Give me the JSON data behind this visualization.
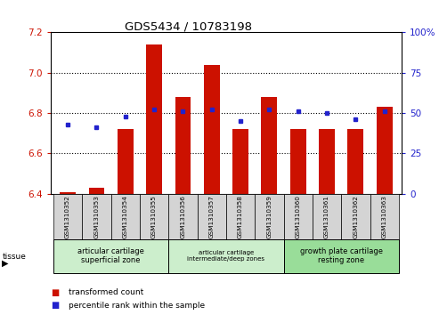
{
  "title": "GDS5434 / 10783198",
  "samples": [
    "GSM1310352",
    "GSM1310353",
    "GSM1310354",
    "GSM1310355",
    "GSM1310356",
    "GSM1310357",
    "GSM1310358",
    "GSM1310359",
    "GSM1310360",
    "GSM1310361",
    "GSM1310362",
    "GSM1310363"
  ],
  "bar_values": [
    6.41,
    6.43,
    6.72,
    7.14,
    6.88,
    7.04,
    6.72,
    6.88,
    6.72,
    6.72,
    6.72,
    6.83
  ],
  "blue_dot_values": [
    43,
    41,
    48,
    52,
    51,
    52,
    45,
    52,
    51,
    50,
    46,
    51
  ],
  "bar_bottom": 6.4,
  "ylim_left": [
    6.4,
    7.2
  ],
  "ylim_right": [
    0,
    100
  ],
  "yticks_left": [
    6.4,
    6.6,
    6.8,
    7.0,
    7.2
  ],
  "yticks_right": [
    0,
    25,
    50,
    75,
    100
  ],
  "bar_color": "#cc1100",
  "dot_color": "#2222cc",
  "tissue_groups": [
    {
      "label": "articular cartilage\nsuperficial zone",
      "start": 0,
      "end": 4,
      "color": "#cceecc"
    },
    {
      "label": "articular cartilage\nintermediate/deep zones",
      "start": 4,
      "end": 8,
      "color": "#cceecc"
    },
    {
      "label": "growth plate cartilage\nresting zone",
      "start": 8,
      "end": 12,
      "color": "#99dd99"
    }
  ],
  "legend_bar_label": "transformed count",
  "legend_dot_label": "percentile rank within the sample",
  "sample_bg": "#d4d4d4"
}
